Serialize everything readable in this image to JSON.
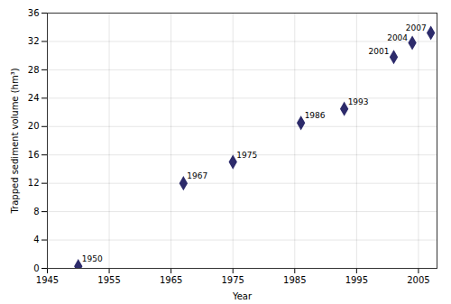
{
  "chart_data": {
    "type": "scatter",
    "x": [
      1950,
      1967,
      1975,
      1986,
      1993,
      2001,
      2004,
      2007
    ],
    "values": [
      0.3,
      12.0,
      15.0,
      20.5,
      22.5,
      29.8,
      31.8,
      33.2
    ],
    "color": "#2d2b6b",
    "marker": "diamond",
    "x_label": "Year",
    "y_label": "Trapped sediment volume (hm³)",
    "xlim": [
      1945,
      2008
    ],
    "ylim": [
      0,
      36
    ],
    "xticks": [
      1945,
      1955,
      1965,
      1975,
      1985,
      1995,
      2005
    ],
    "yticks": [
      0,
      4,
      8,
      12,
      16,
      20,
      24,
      28,
      32,
      36
    ],
    "grid": true,
    "annotations": [
      {
        "text": "1950",
        "x": 1950,
        "y": 0.3
      },
      {
        "text": "1967",
        "x": 1967,
        "y": 12.0
      },
      {
        "text": "1975",
        "x": 1975,
        "y": 15.0
      },
      {
        "text": "1986",
        "x": 1986,
        "y": 20.5
      },
      {
        "text": "1993",
        "x": 1993,
        "y": 22.5
      },
      {
        "text": "2001",
        "x": 2001,
        "y": 29.8
      },
      {
        "text": "2004",
        "x": 2004,
        "y": 31.8
      },
      {
        "text": "2007",
        "x": 2007,
        "y": 33.2
      }
    ]
  }
}
